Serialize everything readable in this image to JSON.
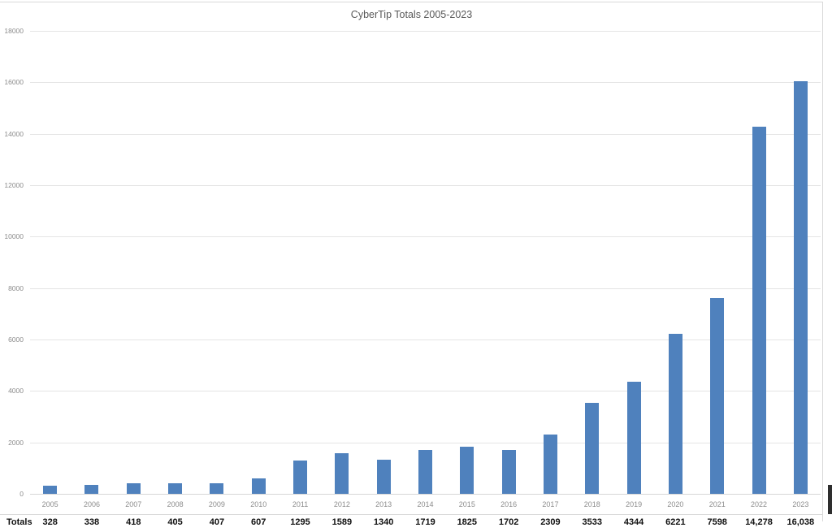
{
  "chart_data": {
    "type": "bar",
    "title": "CyberTip Totals 2005-2023",
    "categories": [
      "2005",
      "2006",
      "2007",
      "2008",
      "2009",
      "2010",
      "2011",
      "2012",
      "2013",
      "2014",
      "2015",
      "2016",
      "2017",
      "2018",
      "2019",
      "2020",
      "2021",
      "2022",
      "2023"
    ],
    "series": [
      {
        "name": "Totals",
        "values": [
          328,
          338,
          418,
          405,
          407,
          607,
          1295,
          1589,
          1340,
          1719,
          1825,
          1702,
          2309,
          3533,
          4344,
          6221,
          7598,
          14278,
          16038
        ],
        "value_labels": [
          "328",
          "338",
          "418",
          "405",
          "407",
          "607",
          "1295",
          "1589",
          "1340",
          "1719",
          "1825",
          "1702",
          "2309",
          "3533",
          "4344",
          "6221",
          "7598",
          "14,278",
          "16,038"
        ]
      }
    ],
    "xlabel": "",
    "ylabel": "",
    "ylim": [
      0,
      18000
    ],
    "ytick_step": 2000,
    "ytick_labels": [
      "0",
      "2000",
      "4000",
      "6000",
      "8000",
      "10000",
      "12000",
      "14000",
      "16000",
      "18000"
    ],
    "grid": true,
    "legend_position": "none",
    "bar_color": "#4f81bd",
    "gridline_color": "#e4e4e4",
    "axis_label_color": "#8c8c8c",
    "title_color": "#595959",
    "data_table_shown": true,
    "data_table_row_label": "Totals"
  },
  "scrollbar": {
    "present": true,
    "color": "#2e2e2e"
  }
}
